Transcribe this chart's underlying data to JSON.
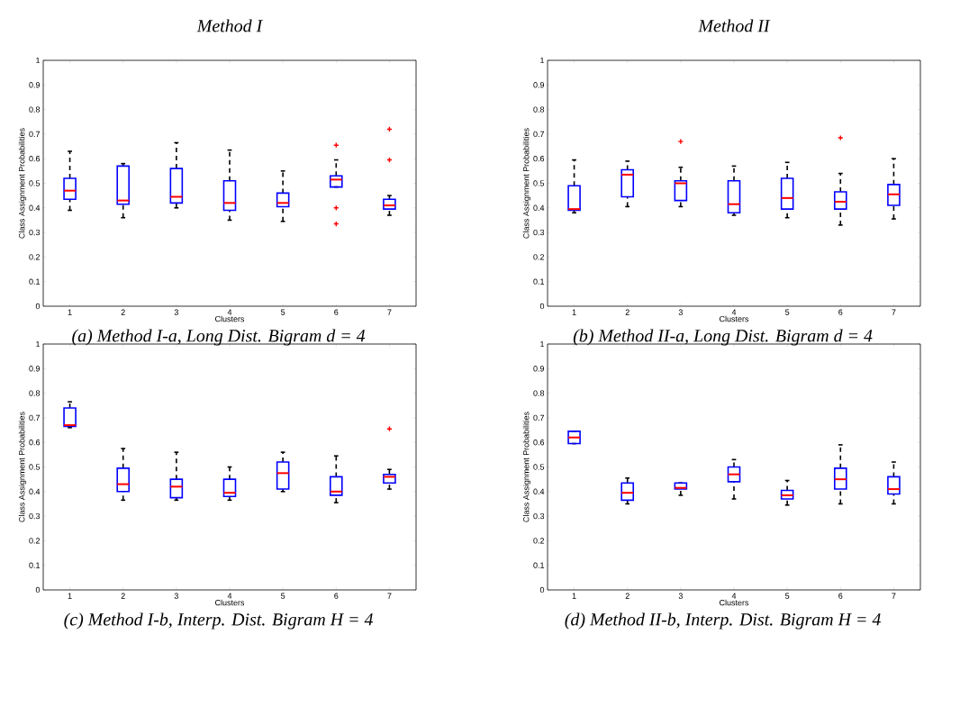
{
  "chart_data": [
    {
      "type": "box",
      "title": "Method I",
      "xlabel": "Clusters",
      "ylabel": "Class Assignment Probabilities",
      "categories": [
        "1",
        "2",
        "3",
        "4",
        "5",
        "6",
        "7"
      ],
      "ylim": [
        0,
        1
      ],
      "yticks": [
        0,
        0.1,
        0.2,
        0.3,
        0.4,
        0.5,
        0.6,
        0.7,
        0.8,
        0.9,
        1
      ],
      "annotations": [
        "(a) Method I-a, Long Dist. Bigram d = 4"
      ],
      "series": [
        {
          "color": "#0000ff",
          "boxes": [
            {
              "low": 0.39,
              "q1": 0.435,
              "median": 0.47,
              "q3": 0.52,
              "high": 0.63
            },
            {
              "low": 0.36,
              "q1": 0.415,
              "median": 0.43,
              "q3": 0.57,
              "high": 0.58
            },
            {
              "low": 0.4,
              "q1": 0.42,
              "median": 0.445,
              "q3": 0.56,
              "high": 0.665
            },
            {
              "low": 0.35,
              "q1": 0.39,
              "median": 0.42,
              "q3": 0.51,
              "high": 0.635
            },
            {
              "low": 0.345,
              "q1": 0.405,
              "median": 0.42,
              "q3": 0.46,
              "high": 0.55
            },
            {
              "low": 0.485,
              "q1": 0.485,
              "median": 0.515,
              "q3": 0.53,
              "high": 0.595,
              "outliers": [
                0.655,
                0.4,
                0.335
              ]
            },
            {
              "low": 0.37,
              "q1": 0.395,
              "median": 0.41,
              "q3": 0.435,
              "high": 0.45,
              "outliers": [
                0.72,
                0.595
              ]
            }
          ]
        }
      ]
    },
    {
      "type": "box",
      "title": "Method II",
      "xlabel": "Clusters",
      "ylabel": "Class Assignment Probabilities",
      "categories": [
        "1",
        "2",
        "3",
        "4",
        "5",
        "6",
        "7"
      ],
      "ylim": [
        0,
        1
      ],
      "yticks": [
        0,
        0.1,
        0.2,
        0.3,
        0.4,
        0.5,
        0.6,
        0.7,
        0.8,
        0.9,
        1
      ],
      "annotations": [
        "(b) Method II-a, Long Dist. Bigram d = 4"
      ],
      "series": [
        {
          "color": "#0000ff",
          "boxes": [
            {
              "low": 0.38,
              "q1": 0.39,
              "median": 0.395,
              "q3": 0.49,
              "high": 0.595
            },
            {
              "low": 0.405,
              "q1": 0.445,
              "median": 0.535,
              "q3": 0.555,
              "high": 0.59
            },
            {
              "low": 0.405,
              "q1": 0.43,
              "median": 0.5,
              "q3": 0.51,
              "high": 0.565,
              "outliers": [
                0.67
              ]
            },
            {
              "low": 0.37,
              "q1": 0.38,
              "median": 0.415,
              "q3": 0.51,
              "high": 0.57
            },
            {
              "low": 0.36,
              "q1": 0.395,
              "median": 0.44,
              "q3": 0.52,
              "high": 0.585
            },
            {
              "low": 0.33,
              "q1": 0.395,
              "median": 0.425,
              "q3": 0.465,
              "high": 0.54,
              "outliers": [
                0.685
              ]
            },
            {
              "low": 0.355,
              "q1": 0.41,
              "median": 0.455,
              "q3": 0.495,
              "high": 0.6
            }
          ]
        }
      ]
    },
    {
      "type": "box",
      "xlabel": "Clusters",
      "ylabel": "Class Assignment Probabilities",
      "categories": [
        "1",
        "2",
        "3",
        "4",
        "5",
        "6",
        "7"
      ],
      "ylim": [
        0,
        1
      ],
      "yticks": [
        0,
        0.1,
        0.2,
        0.3,
        0.4,
        0.5,
        0.6,
        0.7,
        0.8,
        0.9,
        1
      ],
      "annotations": [
        "(c) Method I-b, Interp. Dist. Bigram H = 4"
      ],
      "series": [
        {
          "color": "#0000ff",
          "boxes": [
            {
              "low": 0.66,
              "q1": 0.665,
              "median": 0.67,
              "q3": 0.74,
              "high": 0.765
            },
            {
              "low": 0.365,
              "q1": 0.4,
              "median": 0.43,
              "q3": 0.495,
              "high": 0.575
            },
            {
              "low": 0.365,
              "q1": 0.375,
              "median": 0.42,
              "q3": 0.45,
              "high": 0.56
            },
            {
              "low": 0.365,
              "q1": 0.38,
              "median": 0.395,
              "q3": 0.45,
              "high": 0.5
            },
            {
              "low": 0.4,
              "q1": 0.41,
              "median": 0.475,
              "q3": 0.52,
              "high": 0.56
            },
            {
              "low": 0.355,
              "q1": 0.385,
              "median": 0.4,
              "q3": 0.46,
              "high": 0.545
            },
            {
              "low": 0.41,
              "q1": 0.435,
              "median": 0.46,
              "q3": 0.47,
              "high": 0.49,
              "outliers": [
                0.655
              ]
            }
          ]
        }
      ]
    },
    {
      "type": "box",
      "xlabel": "Clusters",
      "ylabel": "Class Assignment Probabilities",
      "categories": [
        "1",
        "2",
        "3",
        "4",
        "5",
        "6",
        "7"
      ],
      "ylim": [
        0,
        1
      ],
      "yticks": [
        0,
        0.1,
        0.2,
        0.3,
        0.4,
        0.5,
        0.6,
        0.7,
        0.8,
        0.9,
        1
      ],
      "annotations": [
        "(d) Method II-b, Interp. Dist. Bigram H = 4"
      ],
      "series": [
        {
          "color": "#0000ff",
          "boxes": [
            {
              "low": 0.595,
              "q1": 0.595,
              "median": 0.62,
              "q3": 0.645,
              "high": 0.645
            },
            {
              "low": 0.35,
              "q1": 0.365,
              "median": 0.395,
              "q3": 0.435,
              "high": 0.455
            },
            {
              "low": 0.385,
              "q1": 0.41,
              "median": 0.415,
              "q3": 0.435,
              "high": 0.435
            },
            {
              "low": 0.37,
              "q1": 0.44,
              "median": 0.47,
              "q3": 0.5,
              "high": 0.53
            },
            {
              "low": 0.345,
              "q1": 0.37,
              "median": 0.385,
              "q3": 0.405,
              "high": 0.445
            },
            {
              "low": 0.35,
              "q1": 0.41,
              "median": 0.45,
              "q3": 0.495,
              "high": 0.59
            },
            {
              "low": 0.35,
              "q1": 0.39,
              "median": 0.41,
              "q3": 0.46,
              "high": 0.52
            }
          ]
        }
      ]
    }
  ]
}
